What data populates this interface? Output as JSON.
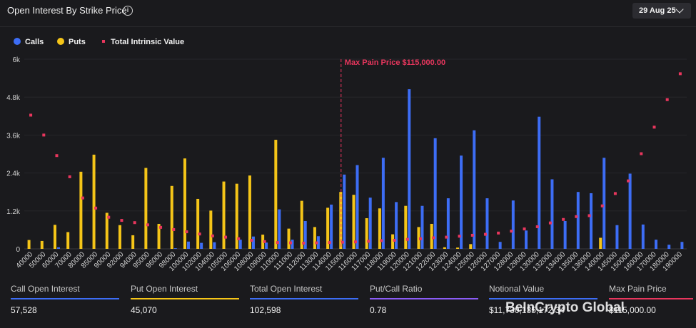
{
  "header": {
    "title": "Open Interest By Strike Price",
    "date": "29 Aug 25"
  },
  "legend": {
    "calls": "Calls",
    "puts": "Puts",
    "tiv": "Total Intrinsic Value",
    "colors": {
      "calls": "#3d6df5",
      "puts": "#f5c518",
      "tiv": "#e8365d"
    }
  },
  "chart_data": {
    "type": "bar",
    "y_ticks": [
      "0",
      "1.2k",
      "2.4k",
      "3.6k",
      "4.8k",
      "6k"
    ],
    "ylim": [
      0,
      6000
    ],
    "annotation": {
      "label": "Max Pain Price $115,000.00",
      "strike": "115000"
    },
    "categories": [
      "40000",
      "50000",
      "60000",
      "70000",
      "80000",
      "85000",
      "90000",
      "92000",
      "94000",
      "95000",
      "96000",
      "98000",
      "100000",
      "102000",
      "104000",
      "105000",
      "106000",
      "108000",
      "109000",
      "110000",
      "111000",
      "112000",
      "113000",
      "114000",
      "115000",
      "116000",
      "117000",
      "118000",
      "119000",
      "120000",
      "121000",
      "122000",
      "123000",
      "124000",
      "125000",
      "126000",
      "127000",
      "128000",
      "129000",
      "130000",
      "132000",
      "134000",
      "135000",
      "136000",
      "140000",
      "145000",
      "150000",
      "160000",
      "170000",
      "180000",
      "190000"
    ],
    "series": [
      {
        "name": "Calls",
        "values": [
          0,
          0,
          50,
          0,
          0,
          0,
          0,
          0,
          0,
          0,
          0,
          20,
          230,
          190,
          210,
          0,
          290,
          390,
          200,
          1250,
          290,
          880,
          400,
          1400,
          2350,
          2650,
          1620,
          2880,
          1480,
          5050,
          1360,
          3500,
          1600,
          2950,
          3750,
          1600,
          220,
          1530,
          580,
          4180,
          2200,
          880,
          1800,
          1760,
          2880,
          750,
          2380,
          770,
          290,
          130,
          220
        ]
      },
      {
        "name": "Puts",
        "values": [
          280,
          250,
          760,
          530,
          2440,
          2980,
          1140,
          750,
          430,
          2560,
          790,
          1990,
          2860,
          1580,
          1210,
          2130,
          2060,
          2320,
          450,
          3450,
          640,
          1520,
          690,
          1300,
          1800,
          1710,
          970,
          1280,
          460,
          1360,
          690,
          790,
          50,
          40,
          150,
          0,
          0,
          0,
          0,
          0,
          0,
          0,
          0,
          0,
          350,
          0,
          0,
          0,
          0,
          0,
          0
        ]
      },
      {
        "name": "Total Intrinsic Value",
        "values": [
          4230,
          3600,
          2950,
          2280,
          1610,
          1290,
          1000,
          900,
          830,
          760,
          680,
          610,
          540,
          470,
          410,
          370,
          320,
          270,
          230,
          200,
          190,
          180,
          190,
          200,
          210,
          220,
          240,
          260,
          270,
          300,
          320,
          350,
          370,
          400,
          430,
          460,
          500,
          560,
          630,
          700,
          820,
          930,
          1020,
          1050,
          1360,
          1750,
          2150,
          3010,
          3850,
          4720,
          5540
        ]
      }
    ]
  },
  "stats": [
    {
      "label": "Call Open Interest",
      "value": "57,528",
      "color": "#3d6df5"
    },
    {
      "label": "Put Open Interest",
      "value": "45,070",
      "color": "#f5c518"
    },
    {
      "label": "Total Open Interest",
      "value": "102,598",
      "color": "#3d6df5"
    },
    {
      "label": "Put/Call Ratio",
      "value": "0.78",
      "color": "#8b5cf6"
    },
    {
      "label": "Notional Value",
      "value": "$11,730,135,172.34",
      "color": "#3d6df5"
    },
    {
      "label": "Max Pain Price",
      "value": "$115,000.00",
      "color": "#e8365d"
    }
  ],
  "watermark": "BeInCrypto Global"
}
